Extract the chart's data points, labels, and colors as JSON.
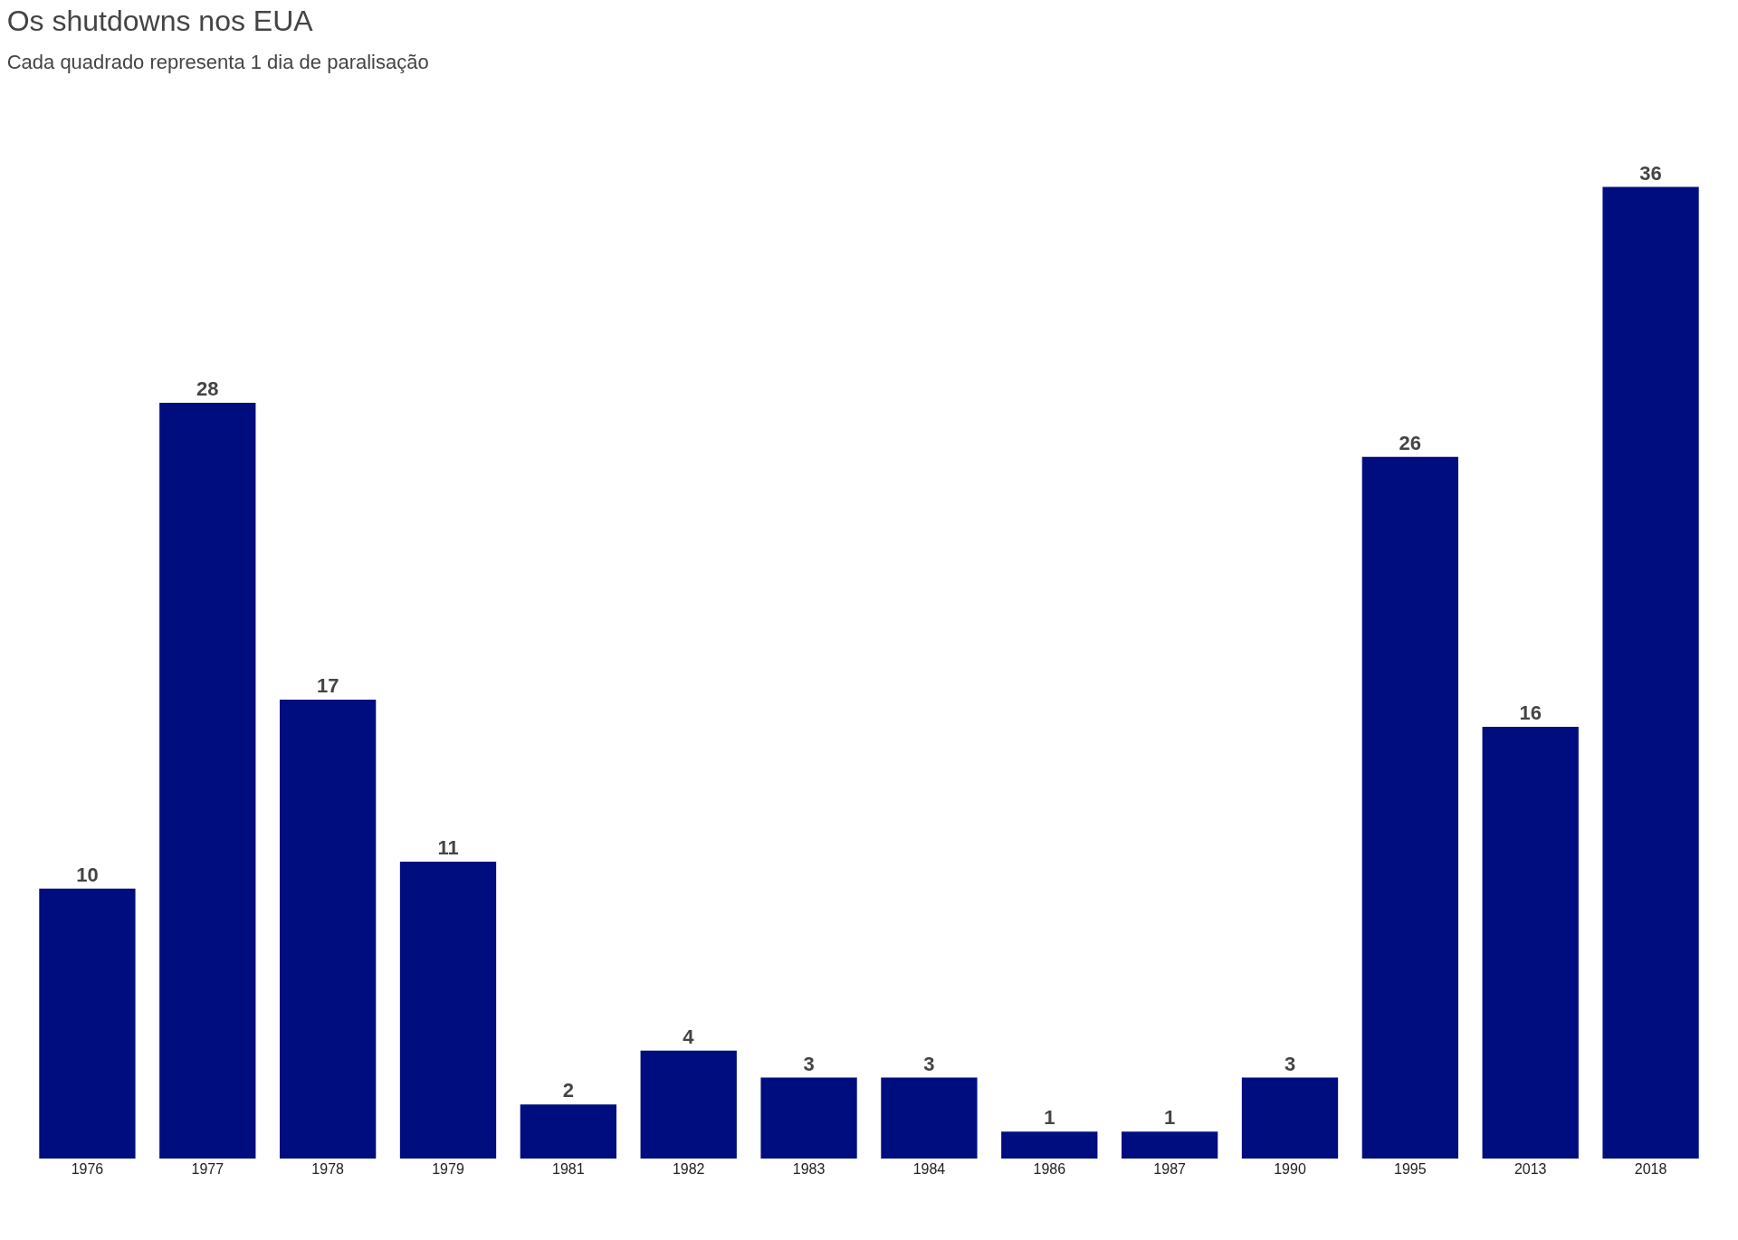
{
  "chart_data": {
    "type": "bar",
    "title": "Os shutdowns nos EUA",
    "subtitle": "Cada quadrado representa 1 dia de paralisação",
    "categories": [
      "1976",
      "1977",
      "1978",
      "1979",
      "1981",
      "1982",
      "1983",
      "1984",
      "1986",
      "1987",
      "1990",
      "1995",
      "2013",
      "2018"
    ],
    "values": [
      10,
      28,
      17,
      11,
      2,
      4,
      3,
      3,
      1,
      1,
      3,
      26,
      16,
      36
    ],
    "color": "#000d7f",
    "data_labels": true,
    "tick_labels": "x"
  }
}
